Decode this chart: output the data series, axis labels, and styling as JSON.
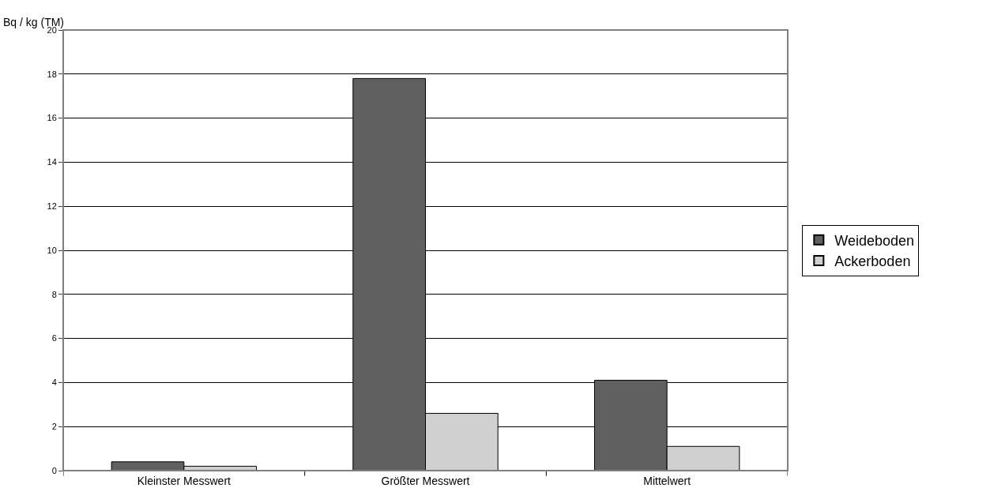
{
  "chart_data": {
    "type": "bar",
    "ylabel": "Bq / kg (TM)",
    "categories": [
      "Kleinster Messwert",
      "Größter Messwert",
      "Mittelwert"
    ],
    "series": [
      {
        "name": "Weideboden",
        "color": "#606060",
        "values": [
          0.4,
          17.8,
          4.1
        ]
      },
      {
        "name": "Ackerboden",
        "color": "#d0d0d0",
        "values": [
          0.2,
          2.6,
          1.1
        ]
      }
    ],
    "ylim": [
      0,
      20
    ],
    "yticks": [
      0,
      2,
      4,
      6,
      8,
      10,
      12,
      14,
      16,
      18,
      20
    ],
    "grid": "y",
    "legend": "right"
  }
}
